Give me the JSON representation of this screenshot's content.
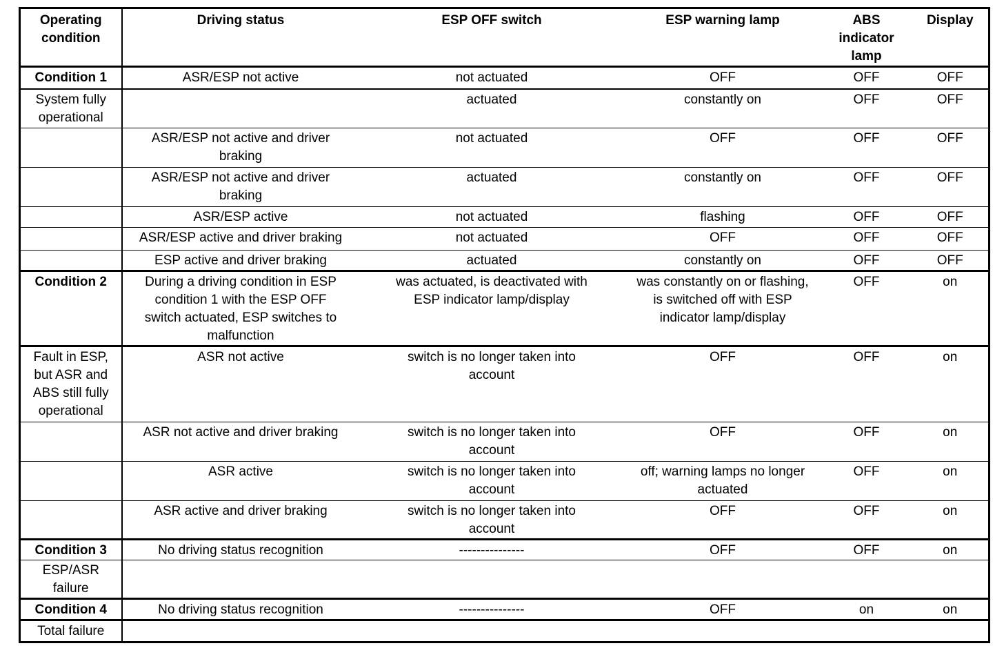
{
  "table": {
    "columns": [
      "Operating\ncondition",
      "Driving status",
      "ESP OFF switch",
      "ESP warning lamp",
      "ABS\nindicator\nlamp",
      "Display"
    ],
    "rows": [
      {
        "cells": [
          "Condition 1",
          "ASR/ESP not active",
          "not actuated",
          "OFF",
          "OFF",
          "OFF"
        ]
      },
      {
        "cells": [
          "System fully\noperational",
          "",
          "actuated",
          "constantly on",
          "OFF",
          "OFF"
        ]
      },
      {
        "cells": [
          "",
          "ASR/ESP not active and driver\nbraking",
          "not actuated",
          "OFF",
          "OFF",
          "OFF"
        ]
      },
      {
        "cells": [
          "",
          "ASR/ESP not active and driver\nbraking",
          "actuated",
          "constantly on",
          "OFF",
          "OFF"
        ]
      },
      {
        "cells": [
          "",
          "ASR/ESP active",
          "not actuated",
          "flashing",
          "OFF",
          "OFF"
        ]
      },
      {
        "cells": [
          "",
          "ASR/ESP active and driver braking",
          "not actuated",
          "OFF",
          "OFF",
          "OFF"
        ]
      },
      {
        "cells": [
          "",
          "ESP active and driver braking",
          "actuated",
          "constantly on",
          "OFF",
          "OFF"
        ]
      },
      {
        "cells": [
          "Condition 2",
          "During a driving condition in ESP\ncondition 1 with the ESP OFF\nswitch actuated, ESP switches to\nmalfunction",
          "was actuated, is deactivated with\nESP indicator lamp/display",
          "was constantly on or flashing,\nis switched off with ESP\nindicator lamp/display",
          "OFF",
          "on"
        ]
      },
      {
        "cells": [
          "Fault in ESP,\nbut ASR and\nABS still fully\noperational",
          "ASR not active",
          "switch is no longer taken into\naccount",
          "OFF",
          "OFF",
          "on"
        ]
      },
      {
        "cells": [
          "",
          "ASR not active and driver braking",
          "switch is no longer taken into\naccount",
          "OFF",
          "OFF",
          "on"
        ]
      },
      {
        "cells": [
          "",
          "ASR active",
          "switch is no longer taken into\naccount",
          "off; warning lamps no longer\nactuated",
          "OFF",
          "on"
        ]
      },
      {
        "cells": [
          "",
          "ASR active and driver braking",
          "switch is no longer taken into\naccount",
          "OFF",
          "OFF",
          "on"
        ]
      },
      {
        "cells": [
          "Condition 3",
          "No driving status recognition",
          "---------------",
          "OFF",
          "OFF",
          "on"
        ]
      },
      {
        "cells": [
          "ESP/ASR\nfailure",
          "",
          "",
          "",
          "",
          ""
        ]
      },
      {
        "cells": [
          "Condition 4",
          "No driving status recognition",
          "---------------",
          "OFF",
          "on",
          "on"
        ]
      },
      {
        "cells": [
          "Total failure",
          "",
          "",
          "",
          "",
          ""
        ]
      }
    ]
  }
}
